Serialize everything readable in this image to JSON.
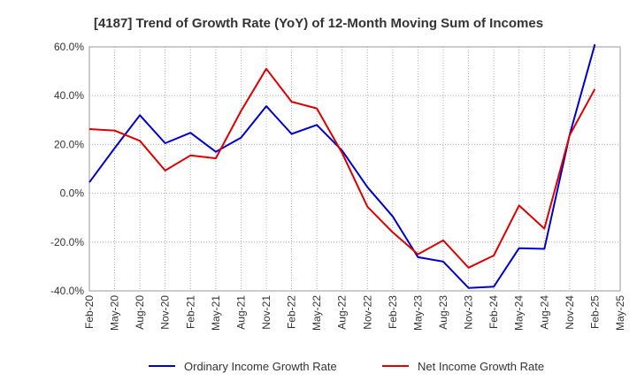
{
  "chart_data": {
    "type": "line",
    "title": "[4187]  Trend of Growth Rate (YoY) of 12-Month Moving Sum of Incomes",
    "xlabel": "",
    "ylabel": "",
    "x_ticks": [
      "Feb-20",
      "May-20",
      "Aug-20",
      "Nov-20",
      "Feb-21",
      "May-21",
      "Aug-21",
      "Nov-21",
      "Feb-22",
      "May-22",
      "Aug-22",
      "Nov-22",
      "Feb-23",
      "May-23",
      "Aug-23",
      "Nov-23",
      "Feb-24",
      "May-24",
      "Aug-24",
      "Nov-24",
      "Feb-25",
      "May-25"
    ],
    "y_ticks": [
      "60.0%",
      "40.0%",
      "20.0%",
      "0.0%",
      "-20.0%",
      "-40.0%"
    ],
    "y_tick_values": [
      60,
      40,
      20,
      0,
      -20,
      -40
    ],
    "ylim": [
      -40,
      60
    ],
    "grid": true,
    "legend_position": "bottom",
    "series": [
      {
        "name": "Ordinary Income Growth Rate",
        "color": "#0000cc",
        "values": [
          4.5,
          18.5,
          32.0,
          20.5,
          24.8,
          17.0,
          22.8,
          35.7,
          24.3,
          28.0,
          17.5,
          2.5,
          -9.5,
          -26.2,
          -28.0,
          -38.8,
          -38.3,
          -22.5,
          -22.8,
          24.0,
          61.0
        ]
      },
      {
        "name": "Net Income Growth Rate",
        "color": "#dd0000",
        "values": [
          26.3,
          25.7,
          21.5,
          9.3,
          15.5,
          14.3,
          33.7,
          51.0,
          37.5,
          34.8,
          16.5,
          -5.5,
          -16.0,
          -25.0,
          -19.3,
          -30.5,
          -25.5,
          -5.0,
          -14.5,
          23.8,
          42.7
        ]
      }
    ]
  }
}
